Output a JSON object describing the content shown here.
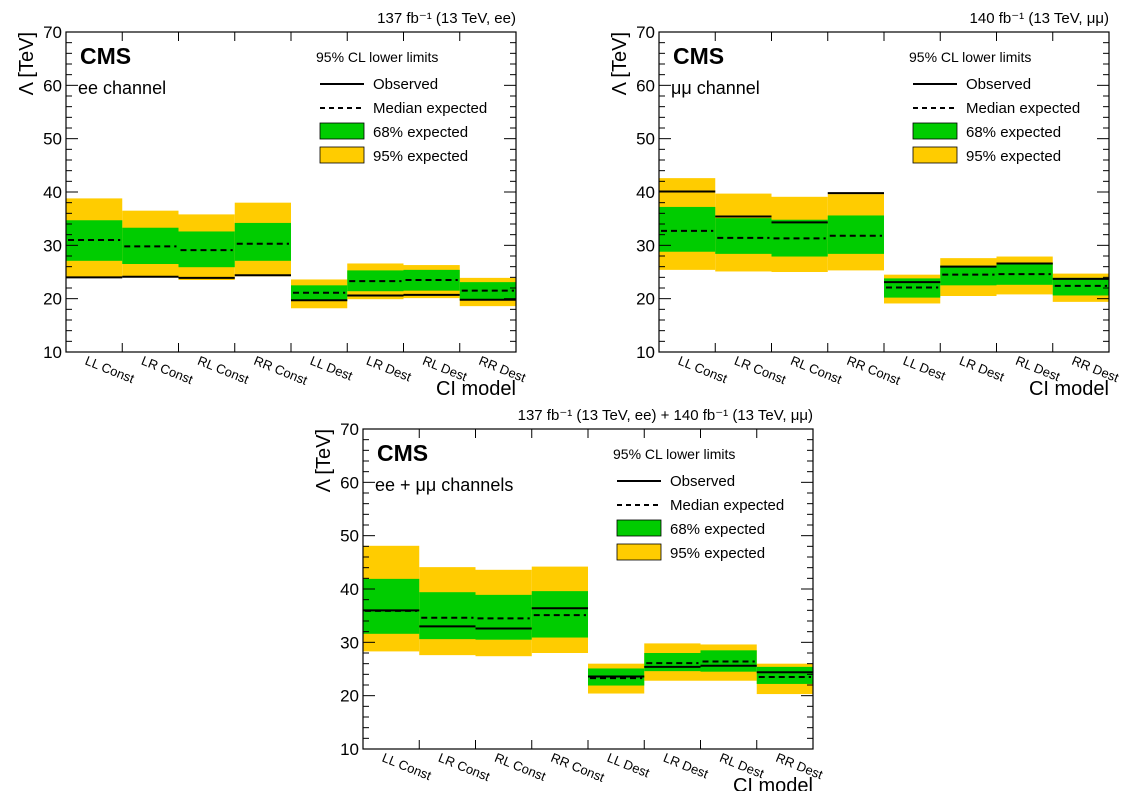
{
  "colors": {
    "band68": "#00cc00",
    "band95": "#ffcc00",
    "line": "#000000",
    "frame": "#000000"
  },
  "labels": {
    "xlabel": "CI model",
    "ylabel": "Λ [TeV]",
    "experiment": "CMS",
    "legend_title": "95% CL lower limits",
    "legend_observed": "Observed",
    "legend_expected": "Median expected",
    "legend_68": "68% expected",
    "legend_95": "95% expected"
  },
  "chart_data": [
    {
      "type": "bar",
      "channel": "ee channel",
      "lumi": "137 fb⁻¹ (13 TeV, ee)",
      "categories": [
        "LL Const",
        "LR Const",
        "RL Const",
        "RR Const",
        "LL Dest",
        "LR Dest",
        "RL Dest",
        "RR Dest"
      ],
      "ylim": [
        10,
        70
      ],
      "yticks": [
        10,
        20,
        30,
        40,
        50,
        60,
        70
      ],
      "legend_position": "top-right",
      "series": [
        {
          "name": "Observed",
          "values": [
            24.0,
            24.1,
            23.9,
            24.4,
            19.7,
            20.6,
            20.7,
            19.8
          ]
        },
        {
          "name": "Median expected",
          "values": [
            31.0,
            29.8,
            29.1,
            30.3,
            21.1,
            23.3,
            23.5,
            21.5
          ]
        },
        {
          "name": "68% expected",
          "low": [
            27.1,
            26.5,
            25.9,
            27.1,
            19.6,
            21.4,
            21.5,
            19.8
          ],
          "high": [
            34.7,
            33.3,
            32.6,
            34.2,
            22.5,
            25.3,
            25.4,
            23.1
          ]
        },
        {
          "name": "95% expected",
          "low": [
            24.1,
            24.0,
            23.5,
            24.2,
            18.2,
            19.9,
            20.1,
            18.6
          ],
          "high": [
            38.8,
            36.5,
            35.8,
            38.0,
            23.6,
            26.6,
            26.3,
            23.9
          ]
        }
      ]
    },
    {
      "type": "bar",
      "channel": "μμ channel",
      "lumi": "140 fb⁻¹ (13 TeV, μμ)",
      "categories": [
        "LL Const",
        "LR Const",
        "RL Const",
        "RR Const",
        "LL Dest",
        "LR Dest",
        "RL Dest",
        "RR Dest"
      ],
      "ylim": [
        10,
        70
      ],
      "yticks": [
        10,
        20,
        30,
        40,
        50,
        60,
        70
      ],
      "legend_position": "top-right",
      "series": [
        {
          "name": "Observed",
          "values": [
            40.1,
            35.4,
            34.3,
            39.8,
            23.1,
            26.0,
            26.6,
            23.7
          ]
        },
        {
          "name": "Median expected",
          "values": [
            32.7,
            31.4,
            31.3,
            31.8,
            22.1,
            24.5,
            24.6,
            22.4
          ]
        },
        {
          "name": "68% expected",
          "low": [
            28.8,
            28.4,
            27.9,
            28.4,
            20.2,
            22.5,
            22.6,
            20.6
          ],
          "high": [
            37.2,
            35.1,
            34.8,
            35.6,
            23.8,
            26.2,
            26.7,
            23.9
          ]
        },
        {
          "name": "95% expected",
          "low": [
            25.4,
            25.1,
            25.0,
            25.3,
            19.1,
            20.5,
            20.8,
            19.4
          ],
          "high": [
            42.6,
            39.7,
            39.1,
            39.6,
            24.5,
            27.6,
            27.9,
            24.7
          ]
        }
      ]
    },
    {
      "type": "bar",
      "channel": "ee + μμ channels",
      "lumi": "137 fb⁻¹ (13 TeV, ee) + 140 fb⁻¹ (13 TeV, μμ)",
      "categories": [
        "LL Const",
        "LR Const",
        "RL Const",
        "RR Const",
        "LL Dest",
        "LR Dest",
        "RL Dest",
        "RR Dest"
      ],
      "ylim": [
        10,
        70
      ],
      "yticks": [
        10,
        20,
        30,
        40,
        50,
        60,
        70
      ],
      "legend_position": "top-right",
      "series": [
        {
          "name": "Observed",
          "values": [
            36.0,
            33.0,
            32.6,
            36.4,
            23.6,
            25.4,
            25.6,
            24.4
          ]
        },
        {
          "name": "Median expected",
          "values": [
            35.9,
            34.6,
            34.5,
            35.1,
            23.3,
            26.1,
            26.4,
            23.5
          ]
        },
        {
          "name": "68% expected",
          "low": [
            31.6,
            30.6,
            30.5,
            30.9,
            21.9,
            24.6,
            24.5,
            22.2
          ],
          "high": [
            41.9,
            39.4,
            38.9,
            39.6,
            25.1,
            28.0,
            28.5,
            25.4
          ]
        },
        {
          "name": "95% expected",
          "low": [
            28.3,
            27.6,
            27.4,
            28.0,
            20.4,
            22.8,
            22.8,
            20.3
          ],
          "high": [
            48.1,
            44.1,
            43.6,
            44.2,
            26.0,
            29.8,
            29.6,
            26.0
          ]
        }
      ]
    }
  ]
}
